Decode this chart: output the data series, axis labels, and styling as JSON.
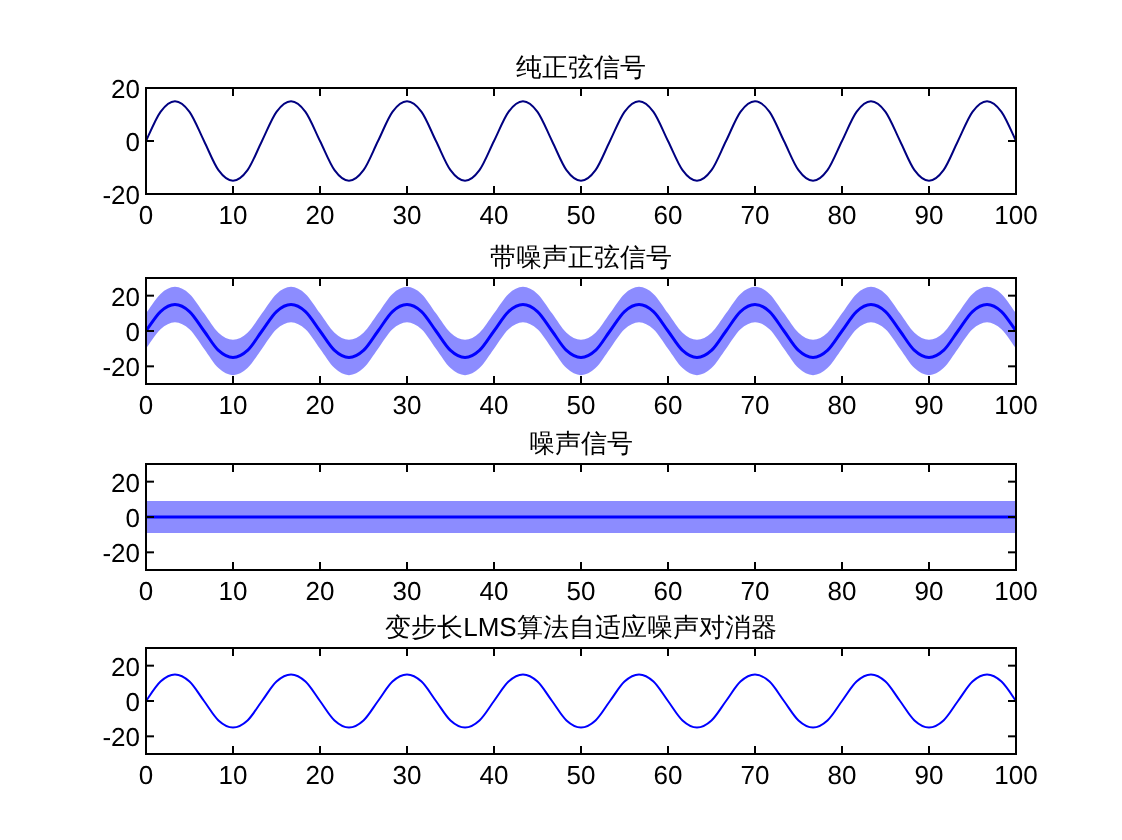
{
  "chart_data": [
    {
      "type": "line",
      "title": "纯正弦信号",
      "xlim": [
        0,
        100
      ],
      "ylim": [
        -20,
        20
      ],
      "xticks": [
        0,
        10,
        20,
        30,
        40,
        50,
        60,
        70,
        80,
        90,
        100
      ],
      "yticks": [
        -20,
        0,
        20
      ],
      "grid": false,
      "x": [
        0,
        1.67,
        3.33,
        5,
        6.67,
        8.33,
        10,
        11.67,
        13.33,
        15,
        16.67,
        18.33,
        20,
        21.67,
        23.33,
        25,
        26.67,
        28.33,
        30,
        31.67,
        33.33,
        35,
        36.67,
        38.33,
        40,
        41.67,
        43.33,
        45,
        46.67,
        48.33,
        50,
        51.67,
        53.33,
        55,
        56.67,
        58.33,
        60,
        61.67,
        63.33,
        65,
        66.67,
        68.33,
        70,
        71.67,
        73.33,
        75,
        76.67,
        78.33,
        80,
        81.67,
        83.33,
        85,
        86.67,
        88.33,
        90,
        91.67,
        93.33,
        95,
        96.67,
        98.33,
        100
      ],
      "series": [
        {
          "color": "#000080",
          "values": [
            0,
            11,
            15,
            11,
            0,
            -11,
            -15,
            -11,
            0,
            11,
            15,
            11,
            0,
            -11,
            -15,
            -11,
            0,
            11,
            15,
            11,
            0,
            -11,
            -15,
            -11,
            0,
            11,
            15,
            11,
            0,
            -11,
            -15,
            -11,
            0,
            11,
            15,
            11,
            0,
            -11,
            -15,
            -11,
            0,
            11,
            15,
            11,
            0,
            -11,
            -15,
            -11,
            0,
            11,
            15,
            11,
            0,
            -11,
            -15,
            -11,
            0,
            11,
            15,
            11,
            0
          ]
        }
      ]
    },
    {
      "type": "line",
      "title": "带噪声正弦信号",
      "xlim": [
        0,
        100
      ],
      "ylim": [
        -30,
        30
      ],
      "xticks": [
        0,
        10,
        20,
        30,
        40,
        50,
        60,
        70,
        80,
        90,
        100
      ],
      "yticks": [
        -20,
        0,
        20
      ],
      "grid": false,
      "x": [
        0,
        1.67,
        3.33,
        5,
        6.67,
        8.33,
        10,
        11.67,
        13.33,
        15,
        16.67,
        18.33,
        20,
        21.67,
        23.33,
        25,
        26.67,
        28.33,
        30,
        31.67,
        33.33,
        35,
        36.67,
        38.33,
        40,
        41.67,
        43.33,
        45,
        46.67,
        48.33,
        50,
        51.67,
        53.33,
        55,
        56.67,
        58.33,
        60,
        61.67,
        63.33,
        65,
        66.67,
        68.33,
        70,
        71.67,
        73.33,
        75,
        76.67,
        78.33,
        80,
        81.67,
        83.33,
        85,
        86.67,
        88.33,
        90,
        91.67,
        93.33,
        95,
        96.67,
        98.33,
        100
      ],
      "series": [
        {
          "color": "#0000ff",
          "values": [
            0,
            11,
            15,
            11,
            0,
            -11,
            -15,
            -11,
            0,
            11,
            15,
            11,
            0,
            -11,
            -15,
            -11,
            0,
            11,
            15,
            11,
            0,
            -11,
            -15,
            -11,
            0,
            11,
            15,
            11,
            0,
            -11,
            -15,
            -11,
            0,
            11,
            15,
            11,
            0,
            -11,
            -15,
            -11,
            0,
            11,
            15,
            11,
            0,
            -11,
            -15,
            -11,
            0,
            11,
            15,
            11,
            0,
            -11,
            -15,
            -11,
            0,
            11,
            15,
            11,
            0
          ],
          "lower": [
            -10,
            1,
            5,
            1,
            -10,
            -21,
            -25,
            -21,
            -10,
            1,
            5,
            1,
            -10,
            -21,
            -25,
            -21,
            -10,
            1,
            5,
            1,
            -10,
            -21,
            -25,
            -21,
            -10,
            1,
            5,
            1,
            -10,
            -21,
            -25,
            -21,
            -10,
            1,
            5,
            1,
            -10,
            -21,
            -25,
            -21,
            -10,
            1,
            5,
            1,
            -10,
            -21,
            -25,
            -21,
            -10,
            1,
            5,
            1,
            -10,
            -21,
            -25,
            -21,
            -10,
            1,
            5,
            1,
            -10
          ],
          "upper": [
            10,
            21,
            25,
            21,
            10,
            -1,
            -5,
            -1,
            10,
            21,
            25,
            21,
            10,
            -1,
            -5,
            -1,
            10,
            21,
            25,
            21,
            10,
            -1,
            -5,
            -1,
            10,
            21,
            25,
            21,
            10,
            -1,
            -5,
            -1,
            10,
            21,
            25,
            21,
            10,
            -1,
            -5,
            -1,
            10,
            21,
            25,
            21,
            10,
            -1,
            -5,
            -1,
            10,
            21,
            25,
            21,
            10,
            -1,
            -5,
            -1,
            10,
            21,
            25,
            21,
            10
          ]
        }
      ]
    },
    {
      "type": "line",
      "title": "噪声信号",
      "xlim": [
        0,
        100
      ],
      "ylim": [
        -30,
        30
      ],
      "xticks": [
        0,
        10,
        20,
        30,
        40,
        50,
        60,
        70,
        80,
        90,
        100
      ],
      "yticks": [
        -20,
        0,
        20
      ],
      "grid": false,
      "x": [
        0,
        10,
        20,
        30,
        40,
        50,
        60,
        70,
        80,
        90,
        100
      ],
      "series": [
        {
          "color": "#0000ff",
          "values": [
            0,
            0,
            0,
            0,
            0,
            0,
            0,
            0,
            0,
            0,
            0
          ],
          "lower": [
            -9,
            -9,
            -9,
            -9,
            -9,
            -9,
            -9,
            -9,
            -9,
            -9,
            -9
          ],
          "upper": [
            9,
            9,
            9,
            9,
            9,
            9,
            9,
            9,
            9,
            9,
            9
          ]
        }
      ]
    },
    {
      "type": "line",
      "title": "变步长LMS算法自适应噪声对消器",
      "xlim": [
        0,
        100
      ],
      "ylim": [
        -30,
        30
      ],
      "xticks": [
        0,
        10,
        20,
        30,
        40,
        50,
        60,
        70,
        80,
        90,
        100
      ],
      "yticks": [
        -20,
        0,
        20
      ],
      "grid": false,
      "x": [
        0,
        1.67,
        3.33,
        5,
        6.67,
        8.33,
        10,
        11.67,
        13.33,
        15,
        16.67,
        18.33,
        20,
        21.67,
        23.33,
        25,
        26.67,
        28.33,
        30,
        31.67,
        33.33,
        35,
        36.67,
        38.33,
        40,
        41.67,
        43.33,
        45,
        46.67,
        48.33,
        50,
        51.67,
        53.33,
        55,
        56.67,
        58.33,
        60,
        61.67,
        63.33,
        65,
        66.67,
        68.33,
        70,
        71.67,
        73.33,
        75,
        76.67,
        78.33,
        80,
        81.67,
        83.33,
        85,
        86.67,
        88.33,
        90,
        91.67,
        93.33,
        95,
        96.67,
        98.33,
        100
      ],
      "series": [
        {
          "color": "#0000ff",
          "values": [
            0,
            11,
            15,
            11,
            0,
            -11,
            -15,
            -11,
            0,
            11,
            15,
            11,
            0,
            -11,
            -15,
            -11,
            0,
            11,
            15,
            11,
            0,
            -11,
            -15,
            -11,
            0,
            11,
            15,
            11,
            0,
            -11,
            -15,
            -11,
            0,
            11,
            15,
            11,
            0,
            -11,
            -15,
            -11,
            0,
            11,
            15,
            11,
            0,
            -11,
            -15,
            -11,
            0,
            11,
            15,
            11,
            0,
            -11,
            -15,
            -11,
            0,
            11,
            15,
            11,
            0
          ]
        }
      ]
    }
  ]
}
